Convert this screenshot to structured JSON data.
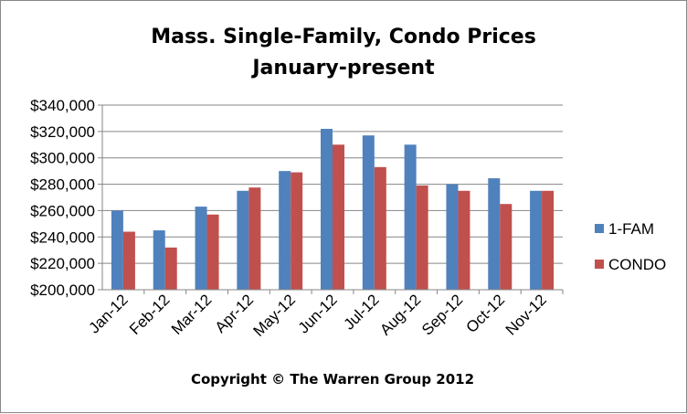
{
  "chart_data": {
    "type": "bar",
    "title": [
      "Mass. Single-Family, Condo Prices",
      "January-present"
    ],
    "categories": [
      "Jan-12",
      "Feb-12",
      "Mar-12",
      "Apr-12",
      "May-12",
      "Jun-12",
      "Jul-12",
      "Aug-12",
      "Sep-12",
      "Oct-12",
      "Nov-12"
    ],
    "series": [
      {
        "name": "1-FAM",
        "color": "#4f81bd",
        "values": [
          260000,
          245000,
          263000,
          275000,
          290000,
          322000,
          317000,
          310000,
          280000,
          284500,
          275000
        ]
      },
      {
        "name": "CONDO",
        "color": "#c0504d",
        "values": [
          244000,
          232000,
          257000,
          277500,
          289000,
          310000,
          293000,
          279000,
          275000,
          265000,
          275000
        ]
      }
    ],
    "ylim": [
      200000,
      340000
    ],
    "yticks": [
      "$200,000",
      "$220,000",
      "$240,000",
      "$260,000",
      "$280,000",
      "$300,000",
      "$320,000",
      "$340,000"
    ],
    "ytick_values": [
      200000,
      220000,
      240000,
      260000,
      280000,
      300000,
      320000,
      340000
    ],
    "grid": true,
    "legend_position": "right",
    "xlabel": "",
    "ylabel": "",
    "footer": "Copyright © The Warren Group 2012"
  }
}
